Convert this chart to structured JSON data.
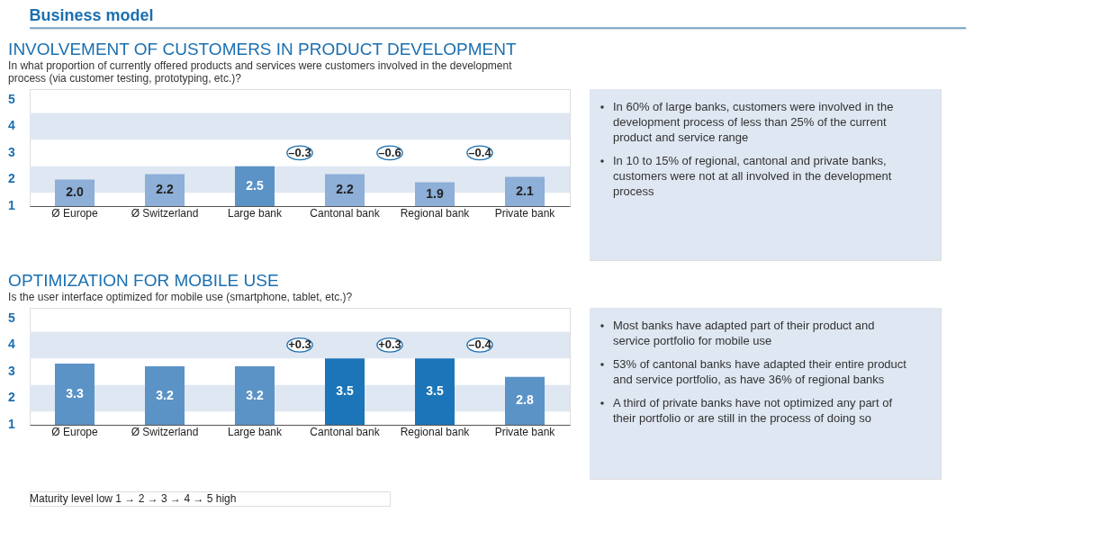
{
  "chart_data": [
    {
      "type": "other",
      "title": "Business model"
    },
    {
      "type": "bar",
      "title": "INVOLVEMENT OF CUSTOMERS IN PRODUCT DEVELOPMENT",
      "subtitle": "In what proportion of currently offered products and services were customers involved in the development process (via customer testing, prototyping, etc.)?",
      "categories": [
        "Ø Europe",
        "Ø Switzerland",
        "Large bank",
        "Cantonal bank",
        "Regional bank",
        "Private bank"
      ],
      "values": [
        2.0,
        2.2,
        2.5,
        2.2,
        1.9,
        2.1
      ],
      "value_labels": [
        "2.0",
        "2.2",
        "2.5",
        "2.2",
        "1.9",
        "2.1"
      ],
      "colors": [
        "#8dafd8",
        "#8dafd8",
        "#5b93c7",
        "#8dafd8",
        "#8dafd8",
        "#8dafd8"
      ],
      "ylim": [
        1,
        5.4
      ],
      "yticks": [
        1,
        2,
        3,
        4,
        5
      ],
      "bands": [
        {
          "axis": "y",
          "from": 1.5,
          "to": 2.5,
          "color": "#dfe7f2"
        },
        {
          "axis": "y",
          "from": 3.5,
          "to": 4.5,
          "color": "#dfe7f2"
        }
      ],
      "annotations": [
        "–0.3",
        "–0.6",
        "–0.4"
      ]
    },
    {
      "type": "other",
      "annotations": [
        "In 60% of large banks, customers were involved in the development process of less than 25% of the current product and service range",
        "In 10 to 15% of regional, cantonal and private banks, customers were not at all involved in the development process"
      ]
    },
    {
      "type": "bar",
      "title": "OPTIMIZATION FOR MOBILE USE",
      "subtitle": "Is the user interface optimized for mobile use (smartphone, tablet, etc.)?",
      "categories": [
        "Ø Europe",
        "Ø Switzerland",
        "Large bank",
        "Cantonal bank",
        "Regional bank",
        "Private bank"
      ],
      "values": [
        3.3,
        3.2,
        3.2,
        3.5,
        3.5,
        2.8
      ],
      "value_labels": [
        "3.3",
        "3.2",
        "3.2",
        "3.5",
        "3.5",
        "2.8"
      ],
      "colors": [
        "#5b93c7",
        "#5b93c7",
        "#5b93c7",
        "#1b75b8",
        "#1b75b8",
        "#5b93c7"
      ],
      "ylim": [
        1,
        5.4
      ],
      "yticks": [
        1,
        2,
        3,
        4,
        5
      ],
      "bands": [
        {
          "axis": "y",
          "from": 1.5,
          "to": 2.5,
          "color": "#dfe7f2"
        },
        {
          "axis": "y",
          "from": 3.5,
          "to": 4.5,
          "color": "#dfe7f2"
        }
      ],
      "annotations": [
        "+0.3",
        "+0.3",
        "–0.4"
      ]
    },
    {
      "type": "other",
      "annotations": [
        "Most banks have adapted part of their product and service portfolio for mobile use",
        "53% of cantonal banks have adapted their entire product and service portfolio, as have 36% of regional banks",
        "A third of private banks have not optimized any part of their portfolio or are still in the process of doing so"
      ]
    },
    {
      "type": "other",
      "annotations": [
        "Maturity level  low 1 → 2 → 3 → 4 → 5 high"
      ]
    }
  ]
}
